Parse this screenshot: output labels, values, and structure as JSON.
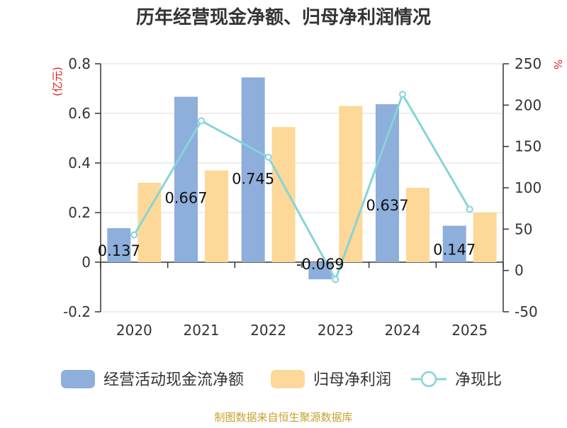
{
  "title": "历年经营现金净额、归母净利润情况",
  "footer": "制图数据来自恒生聚源数据库",
  "colors": {
    "series_ocf": "#8eaedb",
    "series_profit": "#fdd898",
    "series_ratio": "#86d4d9",
    "left_unit": "#e02020",
    "right_unit": "#e02020",
    "title": "#333333",
    "axis": "#333333",
    "grid": "#dddddd",
    "footer": "#c8a030"
  },
  "chart_data": {
    "type": "bar",
    "title": "历年经营现金净额、归母净利润情况",
    "categories": [
      "2020",
      "2021",
      "2022",
      "2023",
      "2024",
      "2025"
    ],
    "y_left": {
      "unit_label": "(亿元)",
      "range": [
        -0.2,
        0.8
      ],
      "ticks": [
        "-0.2",
        "0",
        "0.2",
        "0.4",
        "0.6",
        "0.8"
      ]
    },
    "y_right": {
      "unit_label": "%",
      "range": [
        -50,
        250
      ],
      "ticks": [
        "-50",
        "0",
        "50",
        "100",
        "150",
        "200",
        "250"
      ]
    },
    "grid": true,
    "legend_position": "bottom",
    "series": [
      {
        "name": "经营活动现金流净额",
        "type": "bar",
        "axis": "left",
        "values": [
          0.137,
          0.667,
          0.745,
          -0.069,
          0.637,
          0.147
        ],
        "labels": [
          "0.137",
          "0.667",
          "0.745",
          "-0.069",
          "0.637",
          "0.147"
        ]
      },
      {
        "name": "归母净利润",
        "type": "bar",
        "axis": "left",
        "values": [
          0.32,
          0.37,
          0.545,
          0.63,
          0.3,
          0.2
        ]
      },
      {
        "name": "净现比",
        "type": "line",
        "axis": "right",
        "values": [
          43,
          181,
          137,
          -11,
          213,
          74
        ]
      }
    ]
  }
}
